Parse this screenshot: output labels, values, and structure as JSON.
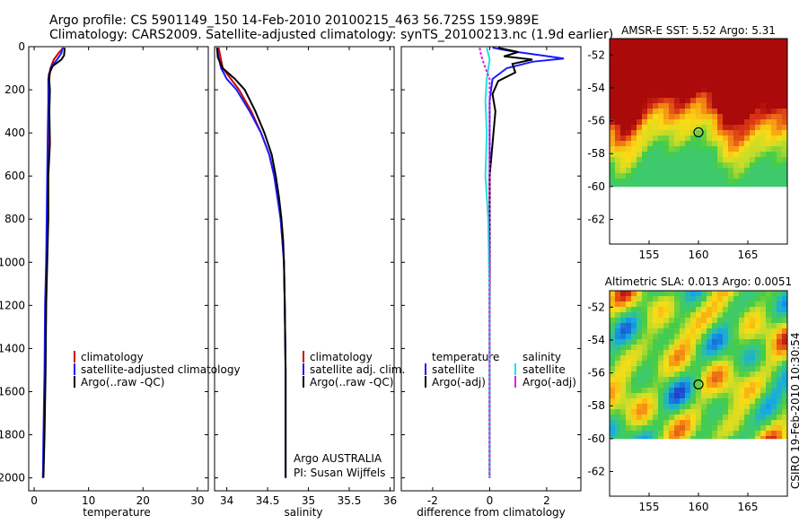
{
  "header": {
    "line1": "Argo profile: CS 5901149_150 14-Feb-2010 20100215_463 56.725S 159.989E",
    "line2": "Climatology: CARS2009. Satellite-adjusted climatology: synTS_20100213.nc (1.9d earlier)"
  },
  "footer": {
    "stamp": "CSIRO 19-Feb-2010 10:30:54"
  },
  "colors": {
    "black": "#000000",
    "red": "#cc0000",
    "blue": "#1a1aff",
    "cyan": "#22e0e0",
    "magenta": "#dd22dd"
  },
  "depth_ticks": [
    "0",
    "200",
    "400",
    "600",
    "800",
    "1000",
    "1200",
    "1400",
    "1600",
    "1800",
    "2000"
  ],
  "chart_data": [
    {
      "type": "line",
      "panel": "temperature",
      "xlabel": "temperature",
      "ylabel": "",
      "xlim": [
        -1,
        32
      ],
      "ylim": [
        2060,
        0
      ],
      "x_ticks": [
        "0",
        "10",
        "20",
        "30"
      ],
      "legend": [
        "climatology",
        "satellite-adjusted climatology",
        "Argo(..raw -QC)"
      ],
      "series": [
        {
          "name": "climatology",
          "color": "red",
          "points": [
            [
              5.4,
              5
            ],
            [
              4.5,
              30
            ],
            [
              3.6,
              60
            ],
            [
              3.0,
              100
            ],
            [
              2.8,
              150
            ],
            [
              2.7,
              250
            ],
            [
              2.6,
              400
            ],
            [
              2.5,
              600
            ],
            [
              2.4,
              800
            ],
            [
              2.3,
              1000
            ],
            [
              2.2,
              1200
            ],
            [
              2.0,
              1500
            ],
            [
              1.8,
              1800
            ],
            [
              1.6,
              2000
            ]
          ]
        },
        {
          "name": "satellite-adjusted climatology",
          "color": "blue",
          "points": [
            [
              5.2,
              5
            ],
            [
              5.0,
              30
            ],
            [
              4.2,
              60
            ],
            [
              3.0,
              100
            ],
            [
              2.6,
              150
            ],
            [
              2.6,
              250
            ],
            [
              2.5,
              400
            ],
            [
              2.4,
              600
            ],
            [
              2.3,
              800
            ],
            [
              2.2,
              1000
            ],
            [
              2.0,
              1200
            ],
            [
              1.9,
              1500
            ],
            [
              1.7,
              1800
            ],
            [
              1.6,
              2000
            ]
          ]
        },
        {
          "name": "Argo(..raw -QC)",
          "color": "black",
          "points": [
            [
              5.6,
              5
            ],
            [
              5.5,
              40
            ],
            [
              5.0,
              60
            ],
            [
              3.4,
              90
            ],
            [
              2.7,
              130
            ],
            [
              2.9,
              200
            ],
            [
              2.8,
              300
            ],
            [
              2.9,
              450
            ],
            [
              2.6,
              600
            ],
            [
              2.6,
              800
            ],
            [
              2.4,
              1000
            ],
            [
              2.2,
              1200
            ],
            [
              2.1,
              1500
            ],
            [
              1.9,
              1800
            ],
            [
              1.7,
              2000
            ]
          ]
        }
      ]
    },
    {
      "type": "line",
      "panel": "salinity",
      "xlabel": "salinity",
      "ylabel": "",
      "xlim": [
        33.85,
        36.05
      ],
      "ylim": [
        2060,
        0
      ],
      "x_ticks": [
        "34",
        "34.5",
        "35",
        "35.5",
        "36"
      ],
      "legend": [
        "climatology",
        "satellite adj. clim.",
        "Argo(..raw -QC)"
      ],
      "series": [
        {
          "name": "climatology",
          "color": "red",
          "points": [
            [
              33.9,
              5
            ],
            [
              33.95,
              100
            ],
            [
              34.05,
              150
            ],
            [
              34.15,
              200
            ],
            [
              34.3,
              300
            ],
            [
              34.42,
              400
            ],
            [
              34.52,
              500
            ],
            [
              34.58,
              600
            ],
            [
              34.63,
              700
            ],
            [
              34.66,
              800
            ],
            [
              34.68,
              900
            ],
            [
              34.7,
              1000
            ],
            [
              34.71,
              1200
            ],
            [
              34.72,
              1500
            ],
            [
              34.72,
              1800
            ],
            [
              34.72,
              2000
            ]
          ]
        },
        {
          "name": "satellite adj. clim.",
          "color": "blue",
          "points": [
            [
              33.88,
              5
            ],
            [
              33.9,
              50
            ],
            [
              33.93,
              100
            ],
            [
              34.0,
              150
            ],
            [
              34.12,
              200
            ],
            [
              34.28,
              300
            ],
            [
              34.42,
              400
            ],
            [
              34.52,
              500
            ],
            [
              34.58,
              600
            ],
            [
              34.62,
              700
            ],
            [
              34.66,
              800
            ],
            [
              34.68,
              900
            ],
            [
              34.7,
              1000
            ],
            [
              34.71,
              1200
            ],
            [
              34.72,
              1500
            ],
            [
              34.72,
              1800
            ],
            [
              34.72,
              2000
            ]
          ]
        },
        {
          "name": "Argo(..raw -QC)",
          "color": "black",
          "points": [
            [
              33.88,
              5
            ],
            [
              33.89,
              50
            ],
            [
              33.95,
              100
            ],
            [
              34.1,
              150
            ],
            [
              34.22,
              200
            ],
            [
              34.35,
              300
            ],
            [
              34.46,
              400
            ],
            [
              34.55,
              500
            ],
            [
              34.6,
              600
            ],
            [
              34.64,
              700
            ],
            [
              34.67,
              800
            ],
            [
              34.69,
              900
            ],
            [
              34.7,
              1000
            ],
            [
              34.71,
              1200
            ],
            [
              34.72,
              1500
            ],
            [
              34.72,
              1800
            ],
            [
              34.72,
              2000
            ]
          ]
        }
      ]
    },
    {
      "type": "line",
      "panel": "difference",
      "xlabel": "difference from climatology",
      "ylabel": "",
      "xlim": [
        -3.1,
        3.2
      ],
      "ylim": [
        2060,
        0
      ],
      "x_ticks": [
        "-2",
        "0",
        "2"
      ],
      "legend_titles": [
        "temperature",
        "salinity"
      ],
      "legend": [
        "satellite",
        "Argo(-adj)",
        "satellite",
        "Argo(-adj)"
      ],
      "series": [
        {
          "name": "temperature satellite",
          "color": "blue",
          "points": [
            [
              0.1,
              5
            ],
            [
              0.7,
              20
            ],
            [
              1.8,
              40
            ],
            [
              2.6,
              55
            ],
            [
              1.5,
              70
            ],
            [
              0.6,
              100
            ],
            [
              0.1,
              150
            ],
            [
              0.0,
              250
            ],
            [
              0.0,
              400
            ],
            [
              0.0,
              800
            ],
            [
              0.0,
              2000
            ]
          ]
        },
        {
          "name": "temperature Argo(-adj)",
          "color": "black",
          "points": [
            [
              0.3,
              5
            ],
            [
              1.0,
              25
            ],
            [
              0.5,
              45
            ],
            [
              1.5,
              60
            ],
            [
              0.8,
              80
            ],
            [
              0.9,
              120
            ],
            [
              0.3,
              160
            ],
            [
              0.1,
              220
            ],
            [
              0.2,
              300
            ],
            [
              0.1,
              450
            ],
            [
              0.0,
              600
            ],
            [
              0.0,
              2000
            ]
          ]
        },
        {
          "name": "salinity satellite",
          "color": "cyan",
          "points": [
            [
              -0.1,
              5
            ],
            [
              0.0,
              60
            ],
            [
              -0.1,
              150
            ],
            [
              -0.15,
              250
            ],
            [
              -0.1,
              400
            ],
            [
              -0.15,
              600
            ],
            [
              -0.05,
              800
            ],
            [
              0.0,
              1200
            ],
            [
              0.0,
              2000
            ]
          ]
        },
        {
          "name": "salinity Argo(-adj)",
          "color": "magenta",
          "points": [
            [
              -0.35,
              5
            ],
            [
              -0.3,
              40
            ],
            [
              -0.15,
              100
            ],
            [
              0.0,
              150
            ],
            [
              0.0,
              2000
            ]
          ]
        }
      ]
    },
    {
      "type": "heatmap",
      "panel": "sst_map",
      "title": "AMSR-E SST: 5.52 Argo: 5.31",
      "xlim": [
        151,
        169
      ],
      "ylim": [
        -63.5,
        -51
      ],
      "x_ticks": [
        "155",
        "160",
        "165"
      ],
      "y_ticks": [
        "-52",
        "-54",
        "-56",
        "-58",
        "-60",
        "-62"
      ],
      "data_extent_lat": [
        -60,
        -51
      ],
      "marker": {
        "lon": 160.0,
        "lat": -56.7
      }
    },
    {
      "type": "heatmap",
      "panel": "sla_map",
      "title": "Altimetric SLA: 0.013 Argo: 0.0051",
      "xlim": [
        151,
        169
      ],
      "ylim": [
        -63.5,
        -51
      ],
      "x_ticks": [
        "155",
        "160",
        "165"
      ],
      "y_ticks": [
        "-52",
        "-54",
        "-56",
        "-58",
        "-60",
        "-62"
      ],
      "data_extent_lat": [
        -60,
        -51
      ],
      "marker": {
        "lon": 160.0,
        "lat": -56.7
      }
    }
  ],
  "annotations": {
    "argo_line1": "Argo AUSTRALIA",
    "argo_line2": "PI: Susan Wijffels"
  }
}
